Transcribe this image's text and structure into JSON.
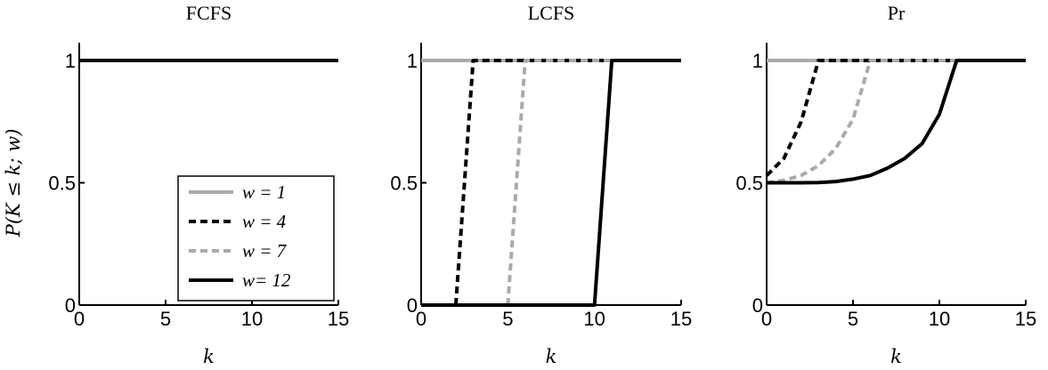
{
  "chart_data": [
    {
      "type": "line",
      "title": "FCFS",
      "xlabel": "k",
      "ylabel": "P(K ≤ k; w)",
      "xlim": [
        0,
        15
      ],
      "ylim": [
        0,
        1
      ],
      "xticks": [
        "0",
        "5",
        "10",
        "15"
      ],
      "yticks": [
        "0",
        "0.5",
        "1"
      ],
      "grid": false,
      "legend_position": "bottom-right",
      "series": [
        {
          "name": "w = 1",
          "color": "#aaaaaa",
          "dash": "solid",
          "x": [
            0,
            15
          ],
          "y": [
            1,
            1
          ]
        },
        {
          "name": "w = 4",
          "color": "#000000",
          "dash": "dashed",
          "x": [
            0,
            15
          ],
          "y": [
            1,
            1
          ]
        },
        {
          "name": "w = 7",
          "color": "#aaaaaa",
          "dash": "dashed",
          "x": [
            0,
            15
          ],
          "y": [
            1,
            1
          ]
        },
        {
          "name": "w= 12",
          "color": "#000000",
          "dash": "solid",
          "x": [
            0,
            15
          ],
          "y": [
            1,
            1
          ]
        }
      ]
    },
    {
      "type": "line",
      "title": "LCFS",
      "xlabel": "k",
      "xlim": [
        0,
        15
      ],
      "ylim": [
        0,
        1
      ],
      "xticks": [
        "0",
        "5",
        "10",
        "15"
      ],
      "yticks": [
        "0",
        "0.5",
        "1"
      ],
      "grid": false,
      "series": [
        {
          "name": "w = 1",
          "color": "#aaaaaa",
          "dash": "solid",
          "x": [
            0,
            15
          ],
          "y": [
            1,
            1
          ]
        },
        {
          "name": "w = 4",
          "color": "#000000",
          "dash": "dashed",
          "x": [
            2,
            3,
            15
          ],
          "y": [
            0,
            1,
            1
          ]
        },
        {
          "name": "w = 7",
          "color": "#aaaaaa",
          "dash": "dashed",
          "x": [
            5,
            6,
            15
          ],
          "y": [
            0,
            1,
            1
          ]
        },
        {
          "name": "w= 12",
          "color": "#000000",
          "dash": "solid",
          "x": [
            0,
            10,
            11,
            15
          ],
          "y": [
            0,
            0,
            1,
            1
          ]
        }
      ]
    },
    {
      "type": "line",
      "title": "Pr",
      "xlabel": "k",
      "xlim": [
        0,
        15
      ],
      "ylim": [
        0,
        1
      ],
      "xticks": [
        "0",
        "5",
        "10",
        "15"
      ],
      "yticks": [
        "0",
        "0.5",
        "1"
      ],
      "grid": false,
      "series": [
        {
          "name": "w = 1",
          "color": "#aaaaaa",
          "dash": "solid",
          "x": [
            0,
            15
          ],
          "y": [
            1,
            1
          ]
        },
        {
          "name": "w = 4",
          "color": "#000000",
          "dash": "dashed",
          "x": [
            0,
            1,
            2,
            3,
            15
          ],
          "y": [
            0.53,
            0.6,
            0.75,
            1,
            1
          ]
        },
        {
          "name": "w = 7",
          "color": "#aaaaaa",
          "dash": "dashed",
          "x": [
            0,
            1,
            2,
            3,
            4,
            5,
            6,
            15
          ],
          "y": [
            0.5,
            0.51,
            0.53,
            0.57,
            0.64,
            0.76,
            1,
            1
          ]
        },
        {
          "name": "w= 12",
          "color": "#000000",
          "dash": "solid",
          "x": [
            0,
            1,
            2,
            3,
            4,
            5,
            6,
            7,
            8,
            9,
            10,
            11,
            15
          ],
          "y": [
            0.5,
            0.5,
            0.5,
            0.501,
            0.505,
            0.515,
            0.53,
            0.56,
            0.6,
            0.66,
            0.78,
            1,
            1
          ]
        }
      ]
    }
  ]
}
